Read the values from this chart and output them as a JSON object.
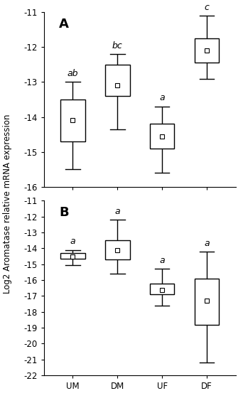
{
  "panel_A": {
    "label": "A",
    "ylim": [
      -16,
      -11
    ],
    "yticks": [
      -16,
      -15,
      -14,
      -13,
      -12,
      -11
    ],
    "categories": [
      "UM",
      "DM",
      "UF",
      "DF"
    ],
    "sig_labels": [
      "ab",
      "bc",
      "a",
      "c"
    ],
    "boxes": [
      {
        "mean": -14.1,
        "q1": -14.7,
        "q3": -13.5,
        "whislo": -15.5,
        "whishi": -13.0
      },
      {
        "mean": -13.1,
        "q1": -13.4,
        "q3": -12.5,
        "whislo": -14.35,
        "whishi": -12.2
      },
      {
        "mean": -14.55,
        "q1": -14.9,
        "q3": -14.2,
        "whislo": -15.6,
        "whishi": -13.7
      },
      {
        "mean": -12.1,
        "q1": -12.45,
        "q3": -11.75,
        "whislo": -12.9,
        "whishi": -11.1
      }
    ]
  },
  "panel_B": {
    "label": "B",
    "ylim": [
      -22,
      -11
    ],
    "yticks": [
      -22,
      -21,
      -20,
      -19,
      -18,
      -17,
      -16,
      -15,
      -14,
      -13,
      -12,
      -11
    ],
    "categories": [
      "UM",
      "DM",
      "UF",
      "DF"
    ],
    "sig_labels": [
      "a",
      "a",
      "a",
      "a"
    ],
    "boxes": [
      {
        "mean": -14.5,
        "q1": -14.65,
        "q3": -14.3,
        "whislo": -15.05,
        "whishi": -14.1
      },
      {
        "mean": -14.1,
        "q1": -14.7,
        "q3": -13.5,
        "whislo": -15.6,
        "whishi": -12.2
      },
      {
        "mean": -16.6,
        "q1": -16.9,
        "q3": -16.2,
        "whislo": -17.6,
        "whishi": -15.3
      },
      {
        "mean": -17.3,
        "q1": -18.8,
        "q3": -15.9,
        "whislo": -21.2,
        "whishi": -14.2
      }
    ]
  },
  "ylabel": "Log2 Aromatase relative mRNA expression",
  "mean_marker_size": 4,
  "whisker_color": "black",
  "sig_fontsize": 9,
  "label_fontsize": 13,
  "tick_fontsize": 8.5,
  "ylabel_fontsize": 8.5
}
